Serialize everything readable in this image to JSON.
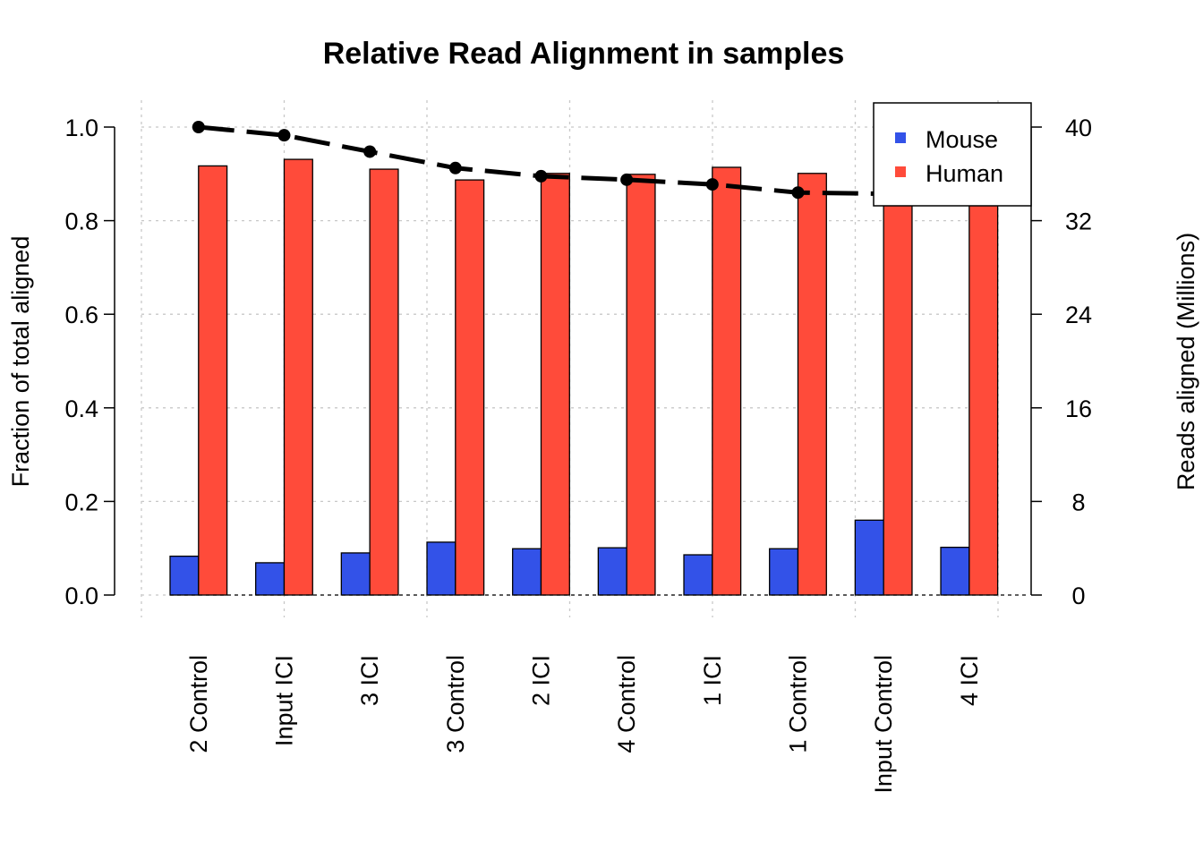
{
  "chart_data": {
    "type": "bar",
    "title": "Relative Read Alignment in samples",
    "ylabel": "Fraction of total aligned",
    "y2label": "Reads aligned (Millions)",
    "xlabel": "",
    "ylim": [
      0,
      1
    ],
    "y2lim": [
      0,
      40
    ],
    "yticks": [
      "0.0",
      "0.2",
      "0.4",
      "0.6",
      "0.8",
      "1.0"
    ],
    "y2ticks": [
      "0",
      "8",
      "16",
      "24",
      "32",
      "40"
    ],
    "grid": true,
    "legend_position": "top-right",
    "categories": [
      "2 Control",
      "Input ICI",
      "3 ICI",
      "3 Control",
      "2 ICI",
      "4 Control",
      "1 ICI",
      "1 Control",
      "Input Control",
      "4 ICI"
    ],
    "series": [
      {
        "name": "Mouse",
        "color": "#3352E8",
        "values": [
          0.083,
          0.069,
          0.09,
          0.113,
          0.099,
          0.101,
          0.086,
          0.099,
          0.16,
          0.102
        ]
      },
      {
        "name": "Human",
        "color": "#FF4B3A",
        "values": [
          0.917,
          0.931,
          0.91,
          0.887,
          0.901,
          0.899,
          0.914,
          0.901,
          0.84,
          0.898
        ]
      }
    ],
    "line": {
      "name": "Reads aligned (Millions)",
      "axis": "right",
      "style": "dashed",
      "color": "#000000",
      "values": [
        40.0,
        39.3,
        37.9,
        36.5,
        35.8,
        35.5,
        35.1,
        34.4,
        34.3,
        34.2
      ]
    }
  }
}
